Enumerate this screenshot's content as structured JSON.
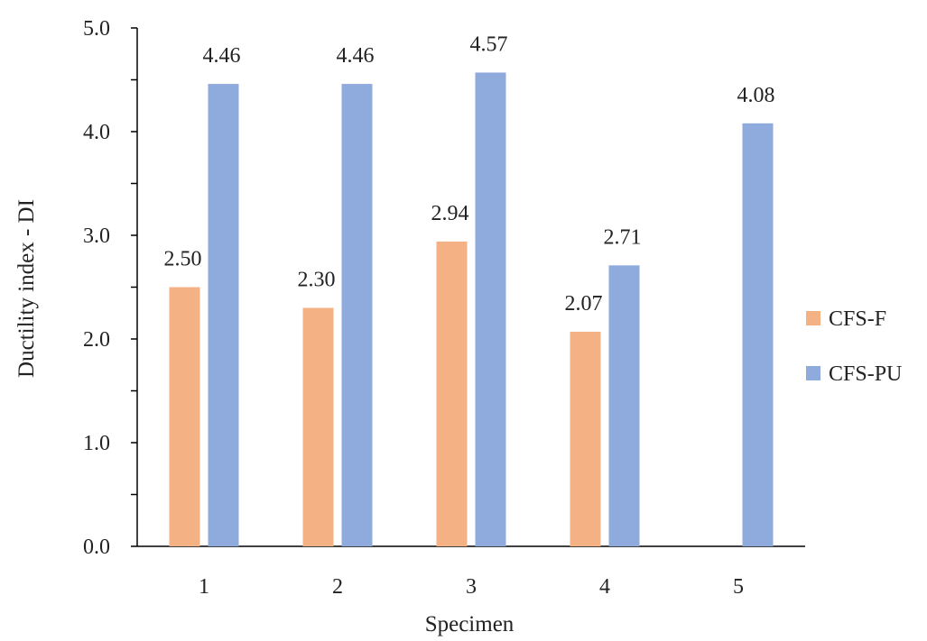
{
  "chart_data": {
    "type": "bar",
    "title": "",
    "xlabel": "Specimen",
    "ylabel": "Ductility index - DI",
    "categories": [
      "1",
      "2",
      "3",
      "4",
      "5"
    ],
    "series": [
      {
        "name": "CFS-F",
        "color": "#F4B183",
        "values": [
          2.5,
          2.3,
          2.94,
          2.07,
          null
        ],
        "labels": [
          "2.50",
          "2.30",
          "2.94",
          "2.07",
          ""
        ]
      },
      {
        "name": "CFS-PU",
        "color": "#8FAADC",
        "values": [
          4.46,
          4.46,
          4.57,
          2.71,
          4.08
        ],
        "labels": [
          "4.46",
          "4.46",
          "4.57",
          "2.71",
          "4.08"
        ]
      }
    ],
    "ylim": [
      0,
      5
    ],
    "yticks": [
      "0.0",
      "1.0",
      "2.0",
      "3.0",
      "4.0",
      "5.0"
    ],
    "grid": false,
    "legend_position": "right"
  }
}
